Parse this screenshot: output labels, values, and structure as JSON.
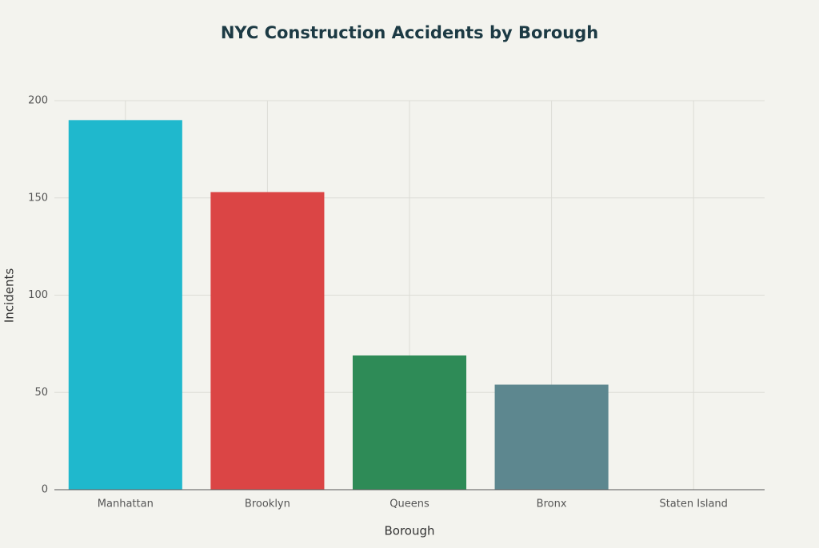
{
  "chart_data": {
    "type": "bar",
    "title": "NYC Construction Accidents by Borough",
    "x_label": "Borough",
    "y_label": "Incidents",
    "categories": [
      "Manhattan",
      "Brooklyn",
      "Queens",
      "Bronx",
      "Staten Island"
    ],
    "values": [
      190,
      153,
      69,
      54,
      0
    ],
    "colors": [
      "#1fb8cd",
      "#db4545",
      "#2e8b57",
      "#5d878f",
      "#d2ba4c"
    ],
    "ylim": [
      0,
      200
    ],
    "yticks": [
      0,
      50,
      100,
      150,
      200
    ],
    "grid": true
  }
}
